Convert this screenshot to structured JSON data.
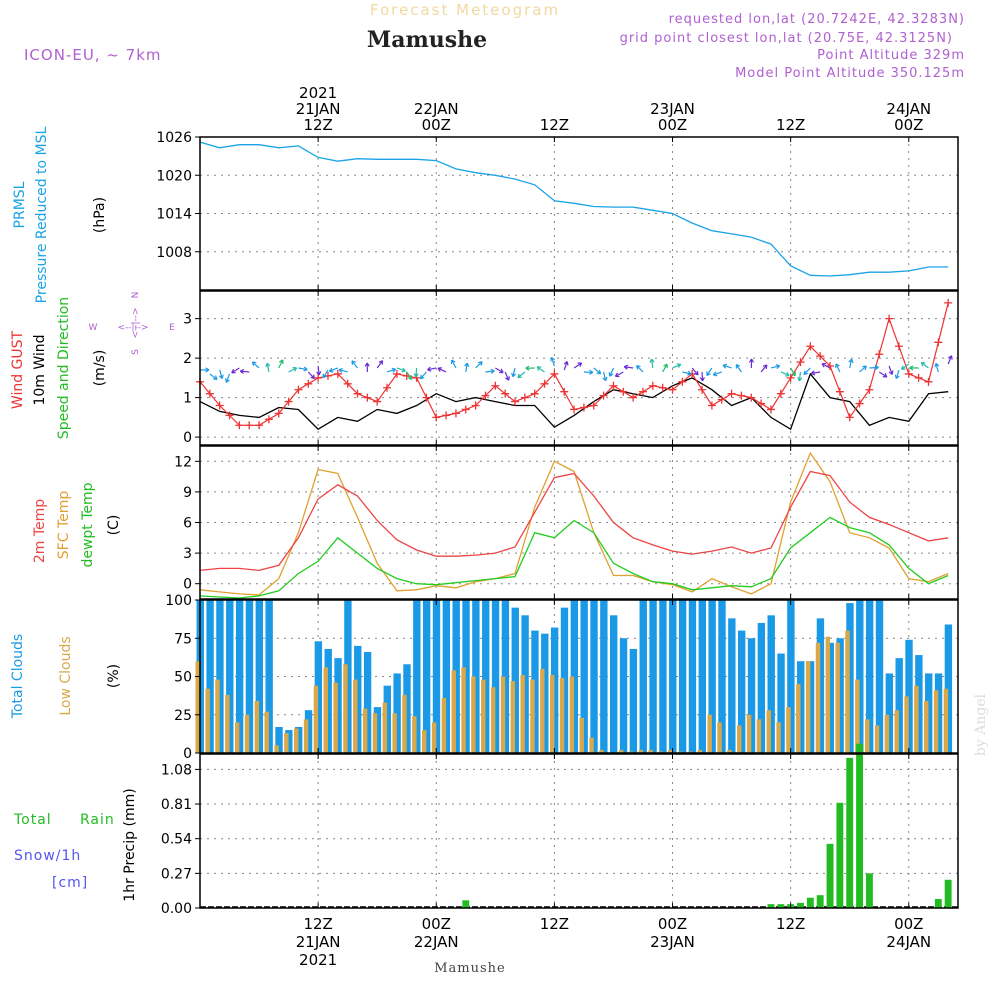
{
  "header": {
    "top_title": "Forecast Meteogram",
    "location": "Mamushe",
    "model": "ICON-EU, ~ 7km",
    "requested": "requested lon,lat (20.7242E, 42.3283N)",
    "gridpoint": "grid point closest lon,lat (20.75E, 42.3125N)",
    "point_alt": "Point Altitude 329m",
    "model_alt": "Model Point Altitude 350.125m",
    "footer_location": "Mamushe",
    "watermark": "by Angel"
  },
  "colors": {
    "pressure": "#1aa3e6",
    "gust": "#ee3333",
    "wind": "#000000",
    "temp2m": "#ee4444",
    "sfc": "#e0a030",
    "dewpt": "#22cc22",
    "total_clouds": "#1a9ae6",
    "low_clouds": "#d9a84a",
    "rain": "#22bb22",
    "purple": "#b060d0",
    "snow": "#5555ee"
  },
  "x_axis": {
    "top": [
      {
        "h": 12,
        "lines": [
          "2021",
          "21JAN",
          "12Z"
        ]
      },
      {
        "h": 24,
        "lines": [
          "22JAN",
          "00Z"
        ]
      },
      {
        "h": 36,
        "lines": [
          "12Z"
        ]
      },
      {
        "h": 48,
        "lines": [
          "23JAN",
          "00Z"
        ]
      },
      {
        "h": 60,
        "lines": [
          "12Z"
        ]
      },
      {
        "h": 72,
        "lines": [
          "24JAN",
          "00Z"
        ]
      }
    ],
    "bottom": [
      {
        "h": 12,
        "lines": [
          "12Z",
          "21JAN",
          "2021"
        ]
      },
      {
        "h": 24,
        "lines": [
          "00Z",
          "22JAN"
        ]
      },
      {
        "h": 36,
        "lines": [
          "12Z"
        ]
      },
      {
        "h": 48,
        "lines": [
          "00Z",
          "23JAN"
        ]
      },
      {
        "h": 60,
        "lines": [
          "12Z"
        ]
      },
      {
        "h": 72,
        "lines": [
          "00Z",
          "24JAN"
        ]
      }
    ]
  },
  "panel_labels": {
    "pressure": {
      "l1": "PRMSL",
      "l2": "Pressure Reduced to MSL",
      "unit": "(hPa)"
    },
    "wind": {
      "l1": "Wind GUST",
      "l2": "10m Wind",
      "l3": "Speed and Direction",
      "unit": "(m/s)",
      "compass_n": "N",
      "compass_s": "S",
      "compass_w": "W",
      "compass_e": "E"
    },
    "temp": {
      "l1": "2m Temp",
      "l2": "SFC Temp",
      "l3": "dewpt Temp",
      "unit": "(C)"
    },
    "clouds": {
      "l1": "Total Clouds",
      "l2": "Low Clouds",
      "unit": "(%)"
    },
    "precip": {
      "l1": "Total",
      "l1b": "Rain",
      "l2": "Snow/1h",
      "l3": "[cm]",
      "unit": "1hr Precip (mm)"
    }
  },
  "chart_data": [
    {
      "type": "line",
      "name": "pressure",
      "ylim": [
        1002,
        1026
      ],
      "yticks": [
        1008,
        1014,
        1020,
        1026
      ],
      "x": [
        0,
        2,
        4,
        6,
        8,
        10,
        12,
        14,
        16,
        18,
        20,
        22,
        24,
        26,
        28,
        30,
        32,
        34,
        36,
        38,
        40,
        42,
        44,
        46,
        48,
        50,
        52,
        54,
        56,
        58,
        60,
        62,
        64,
        66,
        68,
        70,
        72,
        74,
        76
      ],
      "series": [
        {
          "values": [
            1025.2,
            1024.3,
            1024.8,
            1024.8,
            1024.3,
            1024.6,
            1022.8,
            1022.2,
            1022.6,
            1022.5,
            1022.5,
            1022.5,
            1022.3,
            1021.0,
            1020.4,
            1020.0,
            1019.4,
            1018.5,
            1016.0,
            1015.6,
            1015.1,
            1015.0,
            1015.0,
            1014.5,
            1014.0,
            1012.5,
            1011.3,
            1010.8,
            1010.3,
            1009.2,
            1005.8,
            1004.3,
            1004.2,
            1004.4,
            1004.8,
            1004.8,
            1005.0,
            1005.6,
            1005.6
          ]
        }
      ]
    },
    {
      "type": "line",
      "name": "wind",
      "ylim": [
        -0.2,
        3.7
      ],
      "yticks": [
        0,
        1,
        2,
        3
      ],
      "x": [
        0,
        2,
        4,
        6,
        8,
        10,
        12,
        14,
        16,
        18,
        20,
        22,
        24,
        26,
        28,
        30,
        32,
        34,
        36,
        38,
        40,
        42,
        44,
        46,
        48,
        50,
        52,
        54,
        56,
        58,
        60,
        62,
        64,
        66,
        68,
        70,
        72,
        74,
        76
      ],
      "series": [
        {
          "name": "Wind GUST",
          "values": [
            1.4,
            0.8,
            0.3,
            0.3,
            0.6,
            1.2,
            1.5,
            1.6,
            1.1,
            0.9,
            1.6,
            1.5,
            0.5,
            0.6,
            0.8,
            1.3,
            0.9,
            1.1,
            1.6,
            0.7,
            0.8,
            1.3,
            1.0,
            1.3,
            1.2,
            1.6,
            0.8,
            1.1,
            1.0,
            0.7,
            1.5,
            2.3,
            1.8,
            0.5,
            1.2,
            3.0,
            1.6,
            1.4,
            3.4
          ]
        },
        {
          "name": "10m Wind",
          "values": [
            0.9,
            0.65,
            0.55,
            0.5,
            0.75,
            0.7,
            0.2,
            0.5,
            0.4,
            0.7,
            0.6,
            0.8,
            1.1,
            0.9,
            1.0,
            0.9,
            0.8,
            0.8,
            0.25,
            0.55,
            0.9,
            1.2,
            1.1,
            1.0,
            1.3,
            1.5,
            1.2,
            0.8,
            1.0,
            0.5,
            0.2,
            1.6,
            1.0,
            0.9,
            0.3,
            0.5,
            0.4,
            1.1,
            1.15
          ]
        }
      ],
      "arrows": {
        "values": [
          1.65,
          1.65,
          1.7,
          1.7,
          1.7,
          1.7,
          1.75,
          1.7,
          1.7,
          1.7,
          1.7,
          1.7,
          1.7,
          1.7,
          1.7,
          1.7,
          1.7,
          1.7,
          1.75,
          1.7,
          1.7,
          1.7,
          1.7,
          1.7,
          1.7,
          1.7,
          1.7,
          1.7,
          1.7,
          1.7,
          1.7,
          1.7,
          1.7,
          1.7,
          1.7,
          1.75,
          1.8,
          1.7,
          1.8
        ]
      }
    },
    {
      "type": "line",
      "name": "temperature",
      "ylim": [
        -1.5,
        13.5
      ],
      "yticks": [
        0,
        3,
        6,
        9,
        12
      ],
      "x": [
        0,
        2,
        4,
        6,
        8,
        10,
        12,
        14,
        16,
        18,
        20,
        22,
        24,
        26,
        28,
        30,
        32,
        34,
        36,
        38,
        40,
        42,
        44,
        46,
        48,
        50,
        52,
        54,
        56,
        58,
        60,
        62,
        64,
        66,
        68,
        70,
        72,
        74,
        76
      ],
      "series": [
        {
          "name": "2m Temp",
          "values": [
            1.3,
            1.5,
            1.5,
            1.3,
            1.8,
            4.5,
            8.3,
            9.7,
            8.6,
            6.2,
            4.3,
            3.3,
            2.7,
            2.7,
            2.8,
            3.0,
            3.6,
            7.0,
            10.4,
            10.8,
            8.6,
            6.0,
            4.5,
            3.8,
            3.2,
            2.9,
            3.2,
            3.6,
            3.0,
            3.5,
            7.5,
            11.0,
            10.6,
            8.0,
            6.5,
            5.8,
            5.0,
            4.2,
            4.5
          ]
        },
        {
          "name": "SFC Temp",
          "values": [
            -0.6,
            -0.8,
            -1.0,
            -1.1,
            0.5,
            5.0,
            11.2,
            10.8,
            6.5,
            2.0,
            -0.7,
            -0.6,
            -0.2,
            -0.4,
            0.2,
            0.5,
            1.0,
            7.5,
            12.0,
            11.0,
            5.0,
            0.8,
            0.8,
            0.2,
            -0.1,
            -0.8,
            0.5,
            -0.3,
            -1.0,
            0.0,
            8.0,
            12.8,
            10.0,
            5.0,
            4.5,
            3.5,
            0.5,
            0.2,
            1.0
          ]
        },
        {
          "name": "dewpt Temp",
          "values": [
            -1.2,
            -1.3,
            -1.4,
            -1.2,
            -0.7,
            1.0,
            2.2,
            4.5,
            3.0,
            1.5,
            0.5,
            0.0,
            -0.1,
            0.1,
            0.3,
            0.5,
            0.7,
            5.0,
            4.5,
            6.2,
            5.0,
            2.0,
            1.0,
            0.2,
            0.0,
            -0.6,
            -0.4,
            -0.2,
            -0.3,
            0.5,
            3.5,
            5.0,
            6.5,
            5.5,
            5.0,
            3.8,
            1.5,
            0.0,
            0.8
          ]
        }
      ]
    },
    {
      "type": "bar",
      "name": "clouds",
      "ylim": [
        0,
        100
      ],
      "yticks": [
        0,
        25,
        50,
        75,
        100
      ],
      "x": [
        0,
        1,
        2,
        3,
        4,
        5,
        6,
        7,
        8,
        9,
        10,
        11,
        12,
        13,
        14,
        15,
        16,
        17,
        18,
        19,
        20,
        21,
        22,
        23,
        24,
        25,
        26,
        27,
        28,
        29,
        30,
        31,
        32,
        33,
        34,
        35,
        36,
        37,
        38,
        39,
        40,
        41,
        42,
        43,
        44,
        45,
        46,
        47,
        48,
        49,
        50,
        51,
        52,
        53,
        54,
        55,
        56,
        57,
        58,
        59,
        60,
        61,
        62,
        63,
        64,
        65,
        66,
        67,
        68,
        69,
        70,
        71,
        72,
        73,
        74,
        75,
        76
      ],
      "series": [
        {
          "name": "Total Clouds",
          "values": [
            100,
            100,
            100,
            100,
            100,
            100,
            100,
            100,
            17,
            15,
            17,
            28,
            73,
            68,
            62,
            100,
            70,
            66,
            30,
            44,
            52,
            58,
            100,
            100,
            100,
            100,
            100,
            100,
            100,
            100,
            100,
            100,
            95,
            90,
            80,
            78,
            82,
            95,
            100,
            100,
            100,
            100,
            90,
            75,
            68,
            100,
            100,
            100,
            100,
            100,
            100,
            100,
            100,
            100,
            88,
            80,
            75,
            85,
            90,
            65,
            100,
            60,
            60,
            88,
            72,
            75,
            98,
            100,
            100,
            100,
            52,
            62,
            74,
            64,
            52,
            52,
            84
          ]
        },
        {
          "name": "Low Clouds",
          "values": [
            60,
            42,
            48,
            38,
            20,
            25,
            34,
            27,
            5,
            13,
            16,
            22,
            44,
            56,
            46,
            58,
            48,
            29,
            26,
            33,
            26,
            38,
            24,
            15,
            20,
            36,
            54,
            56,
            50,
            48,
            43,
            50,
            47,
            51,
            48,
            55,
            51,
            49,
            50,
            23,
            10,
            2,
            0,
            2,
            1,
            2,
            2,
            1,
            2,
            1,
            1,
            2,
            25,
            20,
            2,
            18,
            25,
            22,
            28,
            20,
            30,
            45,
            60,
            72,
            76,
            72,
            80,
            48,
            22,
            18,
            25,
            28,
            37,
            44,
            34,
            41,
            42
          ]
        }
      ]
    },
    {
      "type": "bar",
      "name": "precipitation",
      "ylim": [
        0,
        1.2
      ],
      "yticks": [
        0,
        0.27,
        0.54,
        0.81,
        1.08
      ],
      "x": [
        27,
        58,
        59,
        60,
        61,
        62,
        63,
        64,
        65,
        66,
        67,
        68,
        75,
        76
      ],
      "series": [
        {
          "name": "Total Rain",
          "values": [
            0.06,
            0.03,
            0.03,
            0.03,
            0.04,
            0.08,
            0.1,
            0.5,
            0.82,
            1.17,
            1.28,
            0.27,
            0.07,
            0.22
          ]
        }
      ]
    }
  ]
}
